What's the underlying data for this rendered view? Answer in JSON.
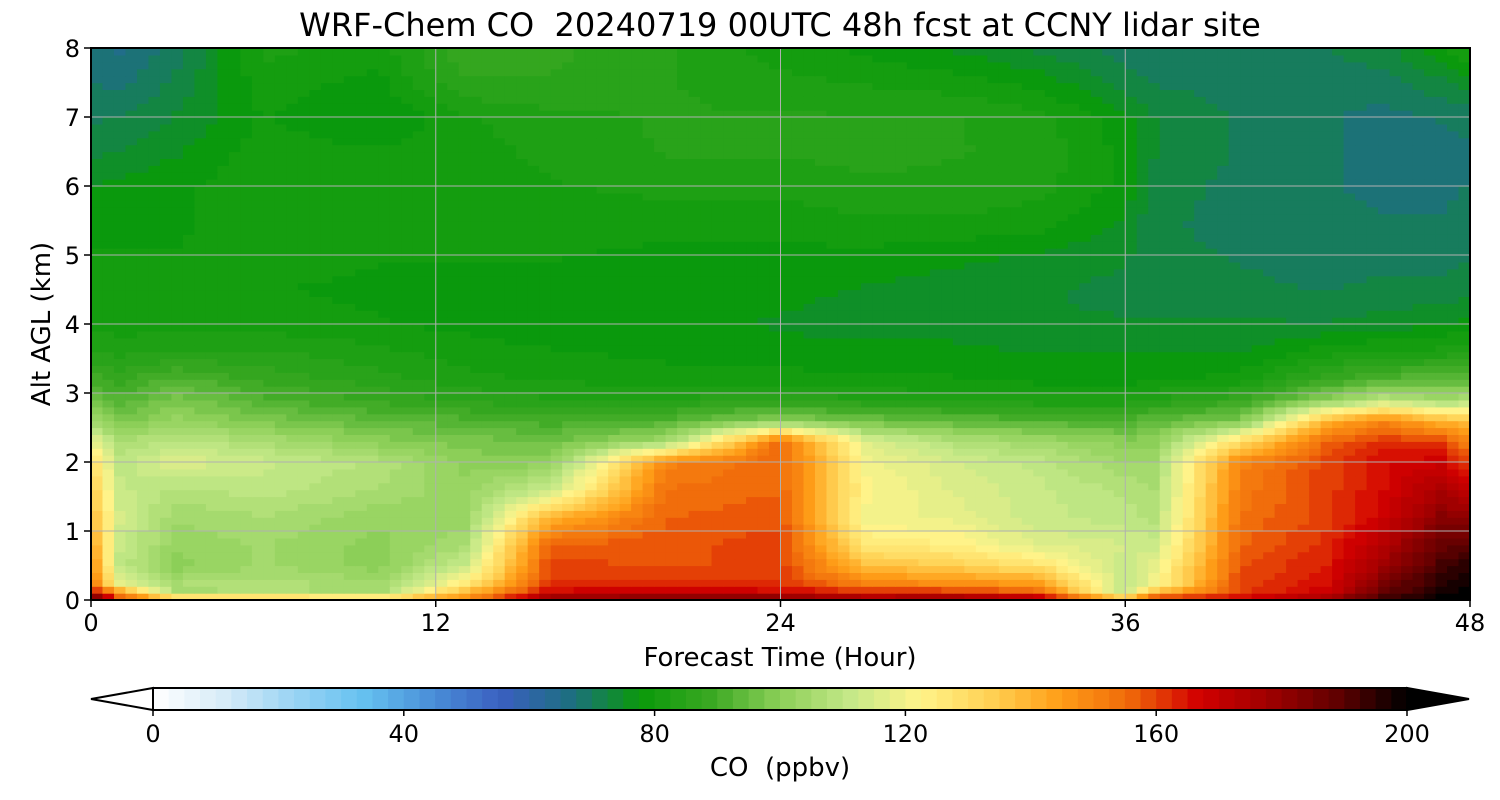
{
  "chart_data": {
    "type": "heatmap",
    "title": "WRF-Chem CO  20240719 00UTC 48h fcst at CCNY lidar site",
    "xlabel": "Forecast Time (Hour)",
    "ylabel": "Alt AGL (km)",
    "xlim": [
      0,
      48
    ],
    "ylim": [
      0,
      8
    ],
    "x_ticks": [
      "0",
      "12",
      "24",
      "36",
      "48"
    ],
    "y_ticks": [
      "0",
      "1",
      "2",
      "3",
      "4",
      "5",
      "6",
      "7",
      "8"
    ],
    "grid": true,
    "colorbar": {
      "label": "CO  (ppbv)",
      "range": [
        0,
        200
      ],
      "ticks": [
        "0",
        "40",
        "80",
        "120",
        "160",
        "200"
      ],
      "extend": "both",
      "orientation": "horizontal",
      "colors": [
        "#ffffff",
        "#d8ecf8",
        "#9bd4f4",
        "#66c2f0",
        "#4a8fd8",
        "#3a5fc0",
        "#1d6f80",
        "#0a9a0a",
        "#3aa822",
        "#8ccf58",
        "#c4e888",
        "#fff48a",
        "#ffd255",
        "#ff9f18",
        "#f06a0a",
        "#d20000",
        "#a00000",
        "#600000",
        "#000000"
      ]
    },
    "z_unit": "ppbv",
    "x": [
      0,
      1,
      3,
      6,
      10,
      13,
      16,
      20,
      24,
      27,
      30,
      33,
      36,
      37,
      40,
      43,
      45,
      47,
      48
    ],
    "y": [
      0,
      0.1,
      0.25,
      0.5,
      0.8,
      1.2,
      1.6,
      2.0,
      2.3,
      2.6,
      2.9,
      3.2,
      3.6,
      4.0,
      4.5,
      5.0,
      5.5,
      6.0,
      6.5,
      7.0,
      7.5,
      8.0
    ],
    "z": [
      [
        200,
        160,
        150,
        148,
        144,
        150,
        185,
        190,
        190,
        182,
        186,
        178,
        148,
        172,
        170,
        182,
        196,
        200,
        200
      ],
      [
        170,
        150,
        104,
        108,
        104,
        140,
        168,
        170,
        168,
        164,
        164,
        158,
        110,
        140,
        160,
        168,
        188,
        198,
        200
      ],
      [
        155,
        118,
        106,
        108,
        104,
        124,
        162,
        162,
        162,
        150,
        148,
        145,
        110,
        120,
        160,
        166,
        184,
        196,
        198
      ],
      [
        150,
        110,
        100,
        104,
        100,
        112,
        160,
        158,
        160,
        138,
        134,
        128,
        112,
        118,
        158,
        164,
        178,
        192,
        196
      ],
      [
        145,
        112,
        102,
        104,
        100,
        106,
        157,
        158,
        160,
        126,
        124,
        116,
        114,
        112,
        156,
        162,
        174,
        188,
        190
      ],
      [
        140,
        114,
        104,
        106,
        102,
        102,
        140,
        156,
        158,
        120,
        118,
        112,
        110,
        108,
        154,
        160,
        168,
        182,
        180
      ],
      [
        136,
        112,
        108,
        110,
        106,
        102,
        112,
        154,
        156,
        122,
        116,
        112,
        108,
        106,
        152,
        160,
        166,
        176,
        170
      ],
      [
        130,
        110,
        116,
        112,
        108,
        100,
        100,
        150,
        156,
        120,
        114,
        110,
        104,
        104,
        150,
        160,
        166,
        168,
        160
      ],
      [
        120,
        106,
        110,
        106,
        100,
        98,
        96,
        104,
        156,
        116,
        108,
        104,
        100,
        100,
        130,
        156,
        162,
        160,
        150
      ],
      [
        104,
        98,
        102,
        98,
        94,
        92,
        90,
        92,
        100,
        96,
        94,
        92,
        92,
        94,
        98,
        140,
        150,
        140,
        138
      ],
      [
        96,
        92,
        98,
        92,
        88,
        86,
        84,
        84,
        86,
        84,
        83,
        82,
        82,
        84,
        88,
        100,
        110,
        104,
        108
      ],
      [
        90,
        88,
        92,
        88,
        85,
        82,
        81,
        80,
        80,
        79,
        79,
        78,
        78,
        78,
        80,
        88,
        92,
        94,
        94
      ],
      [
        84,
        83,
        84,
        84,
        82,
        80,
        79,
        78,
        77,
        77,
        77,
        76,
        76,
        76,
        76,
        80,
        82,
        82,
        84
      ],
      [
        80,
        80,
        80,
        80,
        79,
        78,
        77,
        77,
        76,
        75,
        75,
        74,
        74,
        74,
        74,
        74,
        75,
        76,
        77
      ],
      [
        79,
        79,
        79,
        79,
        78,
        77,
        77,
        77,
        77,
        76,
        75,
        74,
        73,
        72,
        72,
        71,
        72,
        72,
        73
      ],
      [
        79,
        79,
        79,
        80,
        79,
        79,
        79,
        78,
        78,
        78,
        77,
        76,
        74,
        72,
        71,
        70,
        70,
        70,
        71
      ],
      [
        78,
        78,
        78,
        81,
        80,
        80,
        80,
        80,
        80,
        81,
        81,
        80,
        76,
        72,
        70,
        70,
        69,
        69,
        70
      ],
      [
        76,
        77,
        78,
        81,
        80,
        80,
        81,
        82,
        82,
        83,
        83,
        82,
        78,
        73,
        70,
        69,
        68,
        68,
        69
      ],
      [
        73,
        74,
        76,
        80,
        79,
        80,
        82,
        84,
        84,
        85,
        84,
        83,
        78,
        74,
        71,
        69,
        68,
        68,
        68
      ],
      [
        71,
        71,
        74,
        79,
        76,
        81,
        83,
        84,
        84,
        84,
        84,
        82,
        77,
        74,
        71,
        69,
        68,
        69,
        70
      ],
      [
        69,
        68,
        72,
        80,
        78,
        86,
        86,
        84,
        82,
        81,
        80,
        78,
        73,
        71,
        70,
        70,
        70,
        73,
        75
      ],
      [
        68,
        66,
        70,
        82,
        80,
        88,
        87,
        84,
        80,
        78,
        76,
        73,
        70,
        69,
        69,
        71,
        73,
        78,
        82
      ]
    ]
  }
}
